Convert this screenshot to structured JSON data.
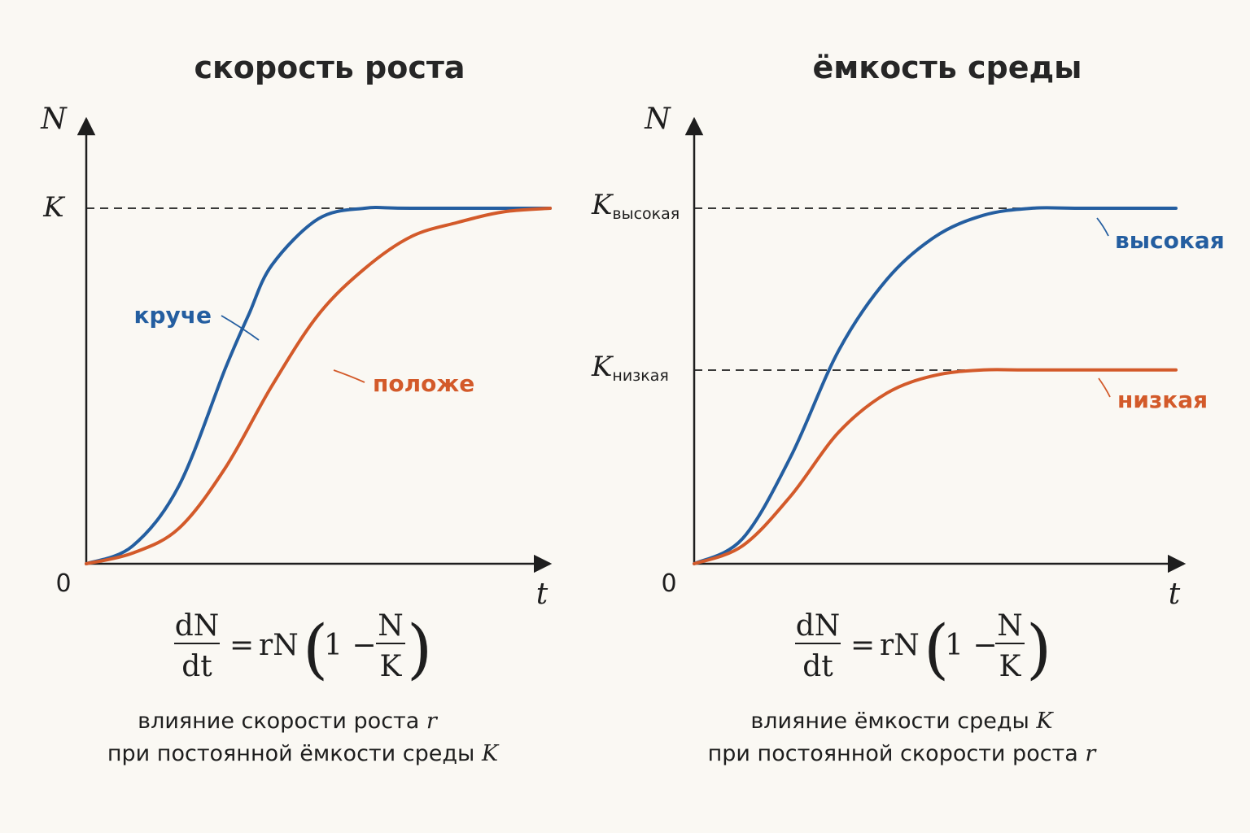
{
  "colors": {
    "blue": "#245ea0",
    "orange": "#d35a2a",
    "axis": "#1e1e1e"
  },
  "chart_data": [
    {
      "type": "line",
      "title": "скорость роста",
      "ylabel": "N",
      "xlabel": "t",
      "origin_label": "0",
      "xlim": [
        0,
        1
      ],
      "ylim": [
        0,
        1.25
      ],
      "reference_lines": [
        {
          "y": 1.0,
          "label": "K",
          "style": "dashed"
        }
      ],
      "series": [
        {
          "name": "круче",
          "color": "#245ea0",
          "x": [
            0.0,
            0.1,
            0.2,
            0.3,
            0.35,
            0.4,
            0.5,
            0.6,
            0.7,
            1.0
          ],
          "y": [
            0.0,
            0.05,
            0.22,
            0.55,
            0.7,
            0.84,
            0.97,
            1.0,
            1.0,
            1.0
          ]
        },
        {
          "name": "положе",
          "color": "#d35a2a",
          "x": [
            0.0,
            0.1,
            0.2,
            0.3,
            0.4,
            0.5,
            0.6,
            0.7,
            0.8,
            0.9,
            1.0
          ],
          "y": [
            0.0,
            0.03,
            0.1,
            0.27,
            0.5,
            0.7,
            0.83,
            0.92,
            0.96,
            0.99,
            1.0
          ]
        }
      ],
      "formula": {
        "lhs_num": "dN",
        "lhs_den": "dt",
        "rhs_a": "= ",
        "rhs_b": "rN",
        "one": "1 − ",
        "frac_num": "N",
        "frac_den": "K"
      },
      "caption": {
        "line1": "влияние скорости роста ",
        "line1_var": "r",
        "line2": "при постоянной ёмкости среды ",
        "line2_var": "K"
      }
    },
    {
      "type": "line",
      "title": "ёмкость среды",
      "ylabel": "N",
      "xlabel": "t",
      "origin_label": "0",
      "xlim": [
        0,
        1
      ],
      "ylim": [
        0,
        1.25
      ],
      "reference_lines": [
        {
          "y": 1.0,
          "label": "K",
          "label_sub": "высокая",
          "style": "dashed"
        },
        {
          "y": 0.545,
          "label": "K",
          "label_sub": "низкая",
          "style": "dashed"
        }
      ],
      "series": [
        {
          "name": "высокая",
          "color": "#245ea0",
          "x": [
            0.0,
            0.1,
            0.2,
            0.3,
            0.4,
            0.5,
            0.6,
            0.7,
            0.8,
            1.0
          ],
          "y": [
            0.0,
            0.07,
            0.3,
            0.6,
            0.8,
            0.92,
            0.98,
            1.0,
            1.0,
            1.0
          ]
        },
        {
          "name": "низкая",
          "color": "#d35a2a",
          "x": [
            0.0,
            0.1,
            0.2,
            0.3,
            0.4,
            0.5,
            0.6,
            0.7,
            1.0
          ],
          "y": [
            0.0,
            0.05,
            0.19,
            0.37,
            0.48,
            0.53,
            0.545,
            0.545,
            0.545
          ]
        }
      ],
      "formula": {
        "lhs_num": "dN",
        "lhs_den": "dt",
        "rhs_a": "= ",
        "rhs_b": "rN",
        "one": "1 − ",
        "frac_num": "N",
        "frac_den": "K"
      },
      "caption": {
        "line1": "влияние ёмкости среды ",
        "line1_var": "K",
        "line2": "при постоянной скорости роста ",
        "line2_var": "r"
      }
    }
  ]
}
